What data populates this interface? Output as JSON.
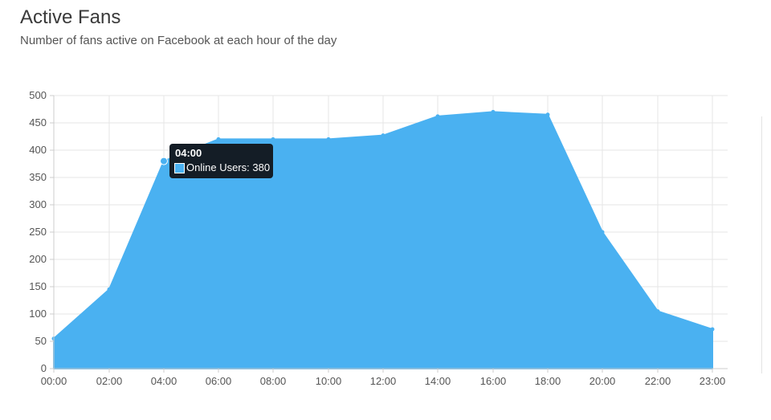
{
  "header": {
    "title": "Active Fans",
    "subtitle": "Number of fans active on Facebook at each hour of the day"
  },
  "tooltip": {
    "title": "04:00",
    "series_label": "Online Users: 380",
    "color": "#4ab1f1"
  },
  "chart_data": {
    "type": "area",
    "x": [
      "00:00",
      "02:00",
      "04:00",
      "06:00",
      "08:00",
      "10:00",
      "12:00",
      "14:00",
      "16:00",
      "18:00",
      "20:00",
      "22:00",
      "23:00"
    ],
    "series": [
      {
        "name": "Online Users",
        "values": [
          55,
          145,
          380,
          420,
          420,
          420,
          427,
          462,
          470,
          465,
          250,
          105,
          72
        ],
        "color": "#4ab1f1"
      }
    ],
    "y_ticks": [
      0,
      50,
      100,
      150,
      200,
      250,
      300,
      350,
      400,
      450,
      500
    ],
    "ylim": [
      0,
      500
    ],
    "grid": true,
    "highlighted_point": "04:00"
  }
}
